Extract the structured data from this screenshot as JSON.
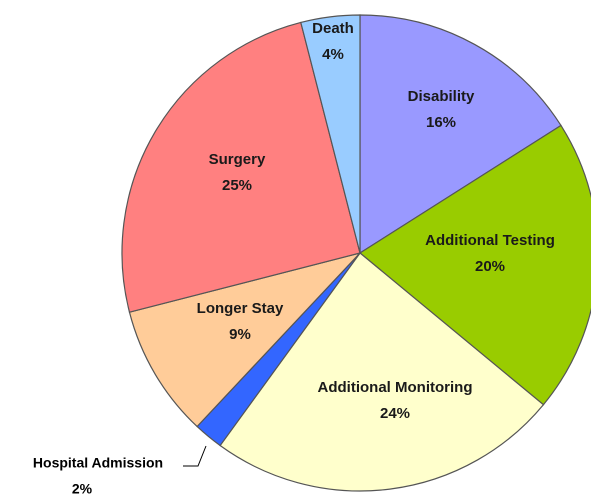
{
  "chart_data": {
    "type": "pie",
    "categories": [
      "Disability",
      "Additional Testing",
      "Additional Monitoring",
      "Hospital Admission",
      "Longer Stay",
      "Surgery",
      "Death"
    ],
    "values": [
      16,
      20,
      24,
      2,
      9,
      25,
      4
    ],
    "value_labels": [
      "16%",
      "20%",
      "24%",
      "2%",
      "9%",
      "25%",
      "4%"
    ],
    "colors": [
      "#9999ff",
      "#99cc00",
      "#ffffcc",
      "#3366ff",
      "#ffcc99",
      "#ff8080",
      "#99ccff"
    ]
  }
}
